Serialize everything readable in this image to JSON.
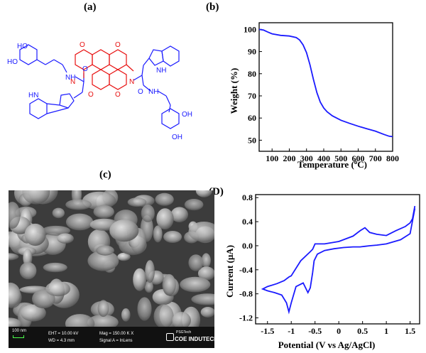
{
  "panels": {
    "a": "(a)",
    "b": "(b)",
    "c": "(c)",
    "d": "(D)"
  },
  "molecule": {
    "core_atoms": [
      "O",
      "O",
      "N",
      "N",
      "O",
      "O"
    ],
    "side_atoms": [
      "HO",
      "HO",
      "NH",
      "HN",
      "O",
      "O",
      "NH",
      "NH",
      "OH",
      "OH"
    ],
    "core_color": "#e81010",
    "side_color": "#1a1aff"
  },
  "sem": {
    "scale_label": "100 nm",
    "eht": "EHT = 10.00 kV",
    "wd": "WD =  4.3 mm",
    "mag": "Mag = 150.00 K X",
    "signal": "Signal A = InLens",
    "logo_top": "PSGTech",
    "logo_bottom": "COE INDUTECH"
  },
  "chart_data": [
    {
      "type": "line",
      "panel": "b",
      "title": "",
      "xlabel": "Temperature (oC)",
      "xlabel_parts": {
        "pre": "Temperature (",
        "sup": "o",
        "post": "C)"
      },
      "ylabel": "Weight (%)",
      "xlim": [
        25,
        800
      ],
      "ylim": [
        45,
        103
      ],
      "xticks": [
        100,
        200,
        300,
        400,
        500,
        600,
        700,
        800
      ],
      "yticks": [
        50,
        60,
        70,
        80,
        90,
        100
      ],
      "color": "#1a1aff",
      "x": [
        25,
        50,
        75,
        100,
        150,
        200,
        240,
        260,
        280,
        300,
        320,
        340,
        360,
        380,
        400,
        420,
        450,
        500,
        550,
        600,
        650,
        700,
        750,
        780,
        800
      ],
      "y": [
        100,
        99.7,
        98.8,
        98,
        97.3,
        97,
        96.3,
        95.2,
        93,
        89.5,
        84,
        77.5,
        71.5,
        67.2,
        64.5,
        62.8,
        61,
        59,
        57.6,
        56.3,
        55.2,
        54.1,
        52.6,
        51.8,
        51.6
      ]
    },
    {
      "type": "line",
      "panel": "D",
      "title": "",
      "xlabel": "Potential (V vs Ag/AgCl)",
      "ylabel": "Current (µA)",
      "xlim": [
        -1.75,
        1.7
      ],
      "ylim": [
        -1.3,
        0.85
      ],
      "xticks": [
        -1.5,
        -1.0,
        -0.5,
        0.0,
        0.5,
        1.0,
        1.5
      ],
      "yticks": [
        -1.2,
        -0.8,
        -0.4,
        0.0,
        0.4,
        0.8
      ],
      "ytick_labels": [
        "-1.2",
        "-0.8",
        "-0.4",
        "0.0",
        "0.4",
        "0.8"
      ],
      "color": "#1a1aff",
      "x": [
        1.6,
        1.5,
        1.3,
        1.0,
        0.8,
        0.65,
        0.55,
        0.45,
        0.3,
        0.1,
        -0.1,
        -0.3,
        -0.45,
        -0.52,
        -0.55,
        -0.6,
        -0.65,
        -0.75,
        -0.9,
        -1.0,
        -1.05,
        -1.1,
        -1.2,
        -1.35,
        -1.5,
        -1.6,
        -1.5,
        -1.3,
        -1.15,
        -1.05,
        -1.0,
        -0.8,
        -0.6,
        -0.55,
        -0.5,
        -0.3,
        0.0,
        0.3,
        0.45,
        0.55,
        0.65,
        0.8,
        1.0,
        1.2,
        1.4,
        1.5,
        1.55,
        1.6
      ],
      "y": [
        0.62,
        0.2,
        0.1,
        0.03,
        0.01,
        0.0,
        -0.01,
        -0.02,
        -0.02,
        -0.03,
        -0.05,
        -0.08,
        -0.14,
        -0.25,
        -0.45,
        -0.7,
        -0.78,
        -0.62,
        -0.68,
        -0.95,
        -1.1,
        -0.95,
        -0.82,
        -0.78,
        -0.75,
        -0.72,
        -0.68,
        -0.63,
        -0.58,
        -0.52,
        -0.5,
        -0.25,
        -0.1,
        -0.06,
        0.03,
        0.03,
        0.07,
        0.16,
        0.25,
        0.3,
        0.22,
        0.19,
        0.17,
        0.25,
        0.32,
        0.38,
        0.45,
        0.66
      ]
    }
  ]
}
